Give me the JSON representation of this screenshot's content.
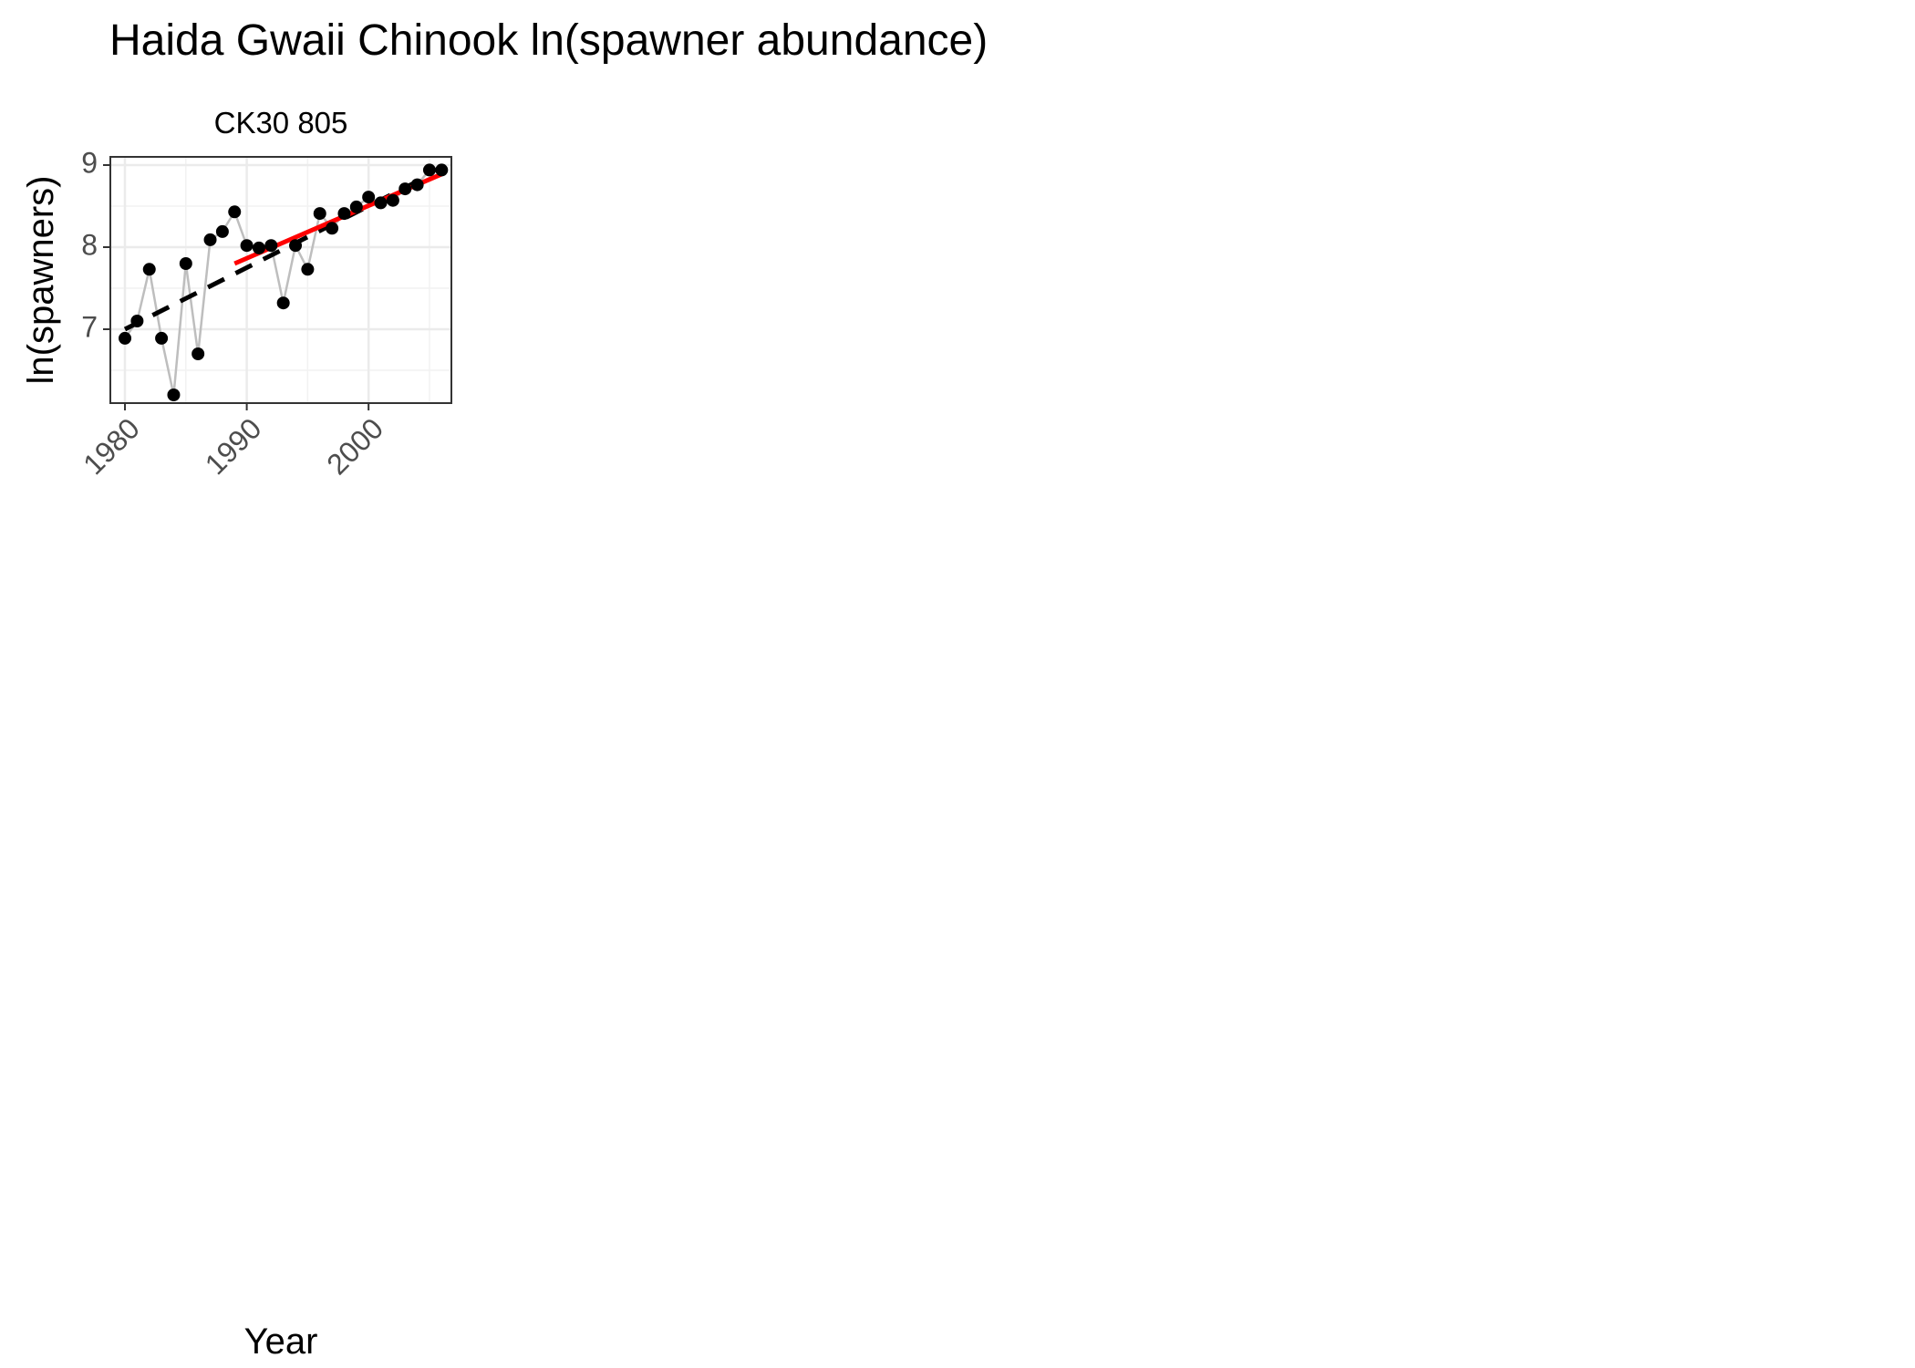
{
  "chart_data": {
    "type": "line",
    "title": "Haida Gwaii Chinook ln(spawner abundance)",
    "facet_label": "CK30 805",
    "xlabel": "Year",
    "ylabel": "ln(spawners)",
    "xlim": [
      1978.8,
      2006.8
    ],
    "ylim": [
      6.1,
      9.1
    ],
    "x_ticks": [
      1980,
      1990,
      2000
    ],
    "x_tick_labels": [
      "1980",
      "1990",
      "2000"
    ],
    "y_ticks": [
      7,
      8,
      9
    ],
    "y_tick_labels": [
      "7",
      "8",
      "9"
    ],
    "grid": true,
    "series": [
      {
        "x": [
          1980,
          1981,
          1982,
          1983,
          1984,
          1985,
          1986,
          1987,
          1988,
          1989,
          1990,
          1991,
          1992,
          1993,
          1994,
          1995,
          1996,
          1997,
          1998,
          1999,
          2000,
          2001,
          2002,
          2003,
          2004,
          2005,
          2006
        ],
        "y": [
          6.89,
          7.1,
          7.73,
          6.89,
          6.2,
          7.8,
          6.7,
          8.09,
          8.19,
          8.43,
          8.02,
          7.99,
          8.02,
          7.32,
          8.02,
          7.73,
          8.41,
          8.23,
          8.41,
          8.49,
          8.61,
          8.54,
          8.57,
          8.71,
          8.76,
          8.94,
          8.94
        ],
        "color": "#000000",
        "line_color": "#bebebe"
      }
    ],
    "trend_lines": [
      {
        "style": "dashed",
        "color": "#000000",
        "x": [
          1980,
          2004
        ],
        "y": [
          7.0,
          8.8
        ]
      },
      {
        "style": "solid",
        "color": "#ff0000",
        "x": [
          1989,
          2006
        ],
        "y": [
          7.8,
          8.89
        ]
      }
    ]
  }
}
